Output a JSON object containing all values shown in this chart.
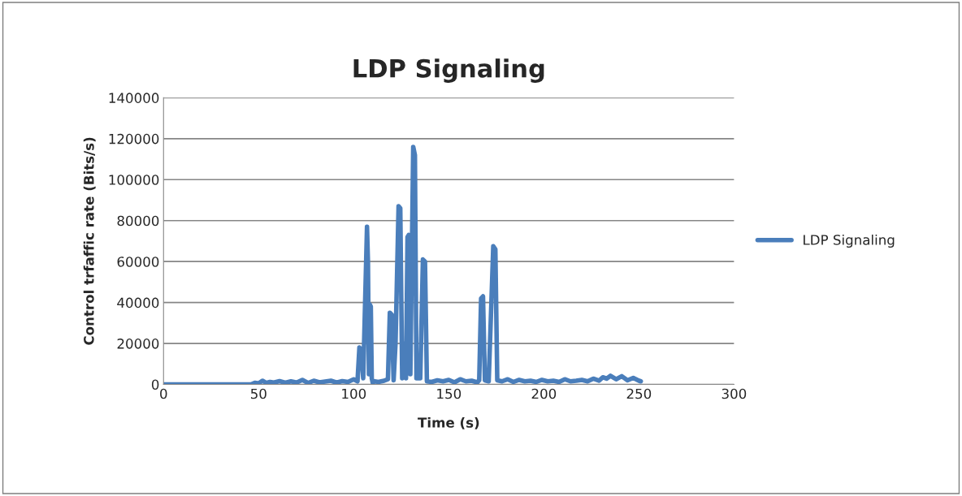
{
  "chart_data": {
    "type": "line",
    "title": "LDP Signaling",
    "xlabel": "Time (s)",
    "ylabel": "Control trfaffic rate (Bits/s)",
    "x": [
      0,
      10,
      20,
      30,
      40,
      46,
      48,
      50,
      52,
      54,
      56,
      58,
      61,
      64,
      67,
      70,
      73,
      76,
      79,
      82,
      85,
      88,
      91,
      94,
      97,
      100,
      102,
      103,
      104,
      105,
      106,
      107,
      107.5,
      108,
      108.5,
      109,
      109.5,
      110,
      111,
      113,
      116,
      118,
      119,
      120,
      121,
      122,
      123.6,
      124.5,
      125.5,
      126.6,
      127.5,
      128.3,
      129,
      129.8,
      131.3,
      132.2,
      133,
      135,
      136.4,
      137.5,
      138.5,
      141,
      144,
      147,
      150,
      153,
      156,
      159,
      162,
      165,
      166,
      167,
      168,
      169,
      171,
      173.4,
      174.5,
      175.5,
      178,
      181,
      184,
      187,
      190,
      193,
      196,
      199,
      202,
      205,
      208,
      211,
      214,
      217,
      220,
      223,
      226,
      229,
      231,
      233,
      235,
      238,
      241,
      244,
      247,
      250,
      251
    ],
    "series": [
      {
        "name": "LDP Signaling",
        "color": "#4a7ebb",
        "values": [
          0,
          0,
          0,
          0,
          0,
          0,
          800,
          500,
          1800,
          700,
          1200,
          900,
          1600,
          800,
          1500,
          900,
          2200,
          700,
          1800,
          1000,
          1400,
          1800,
          900,
          1600,
          1200,
          2500,
          1500,
          18000,
          17000,
          3000,
          40000,
          77000,
          60000,
          5000,
          39000,
          38000,
          3000,
          800,
          1500,
          1200,
          1800,
          2500,
          35000,
          34000,
          2000,
          20000,
          87000,
          86000,
          3000,
          20000,
          3000,
          72000,
          73000,
          5000,
          116000,
          112000,
          3000,
          3000,
          61000,
          60000,
          1500,
          1200,
          2000,
          1500,
          2200,
          1000,
          2500,
          1500,
          1800,
          1000,
          2000,
          42000,
          43000,
          2000,
          1500,
          67500,
          66000,
          2000,
          1500,
          2500,
          1200,
          2200,
          1500,
          1800,
          1200,
          2200,
          1500,
          1800,
          1200,
          2500,
          1500,
          1800,
          2200,
          1500,
          2800,
          1800,
          3500,
          2800,
          4200,
          2500,
          4000,
          2000,
          3200,
          1800,
          1500
        ]
      }
    ],
    "xlim": [
      0,
      300
    ],
    "xticks": [
      0,
      50,
      100,
      150,
      200,
      250,
      300
    ],
    "ylim": [
      0,
      140000
    ],
    "yticks": [
      0,
      20000,
      40000,
      60000,
      80000,
      100000,
      120000,
      140000
    ],
    "grid": "y",
    "legend": "right",
    "marker": "none",
    "line_style": "solid"
  }
}
